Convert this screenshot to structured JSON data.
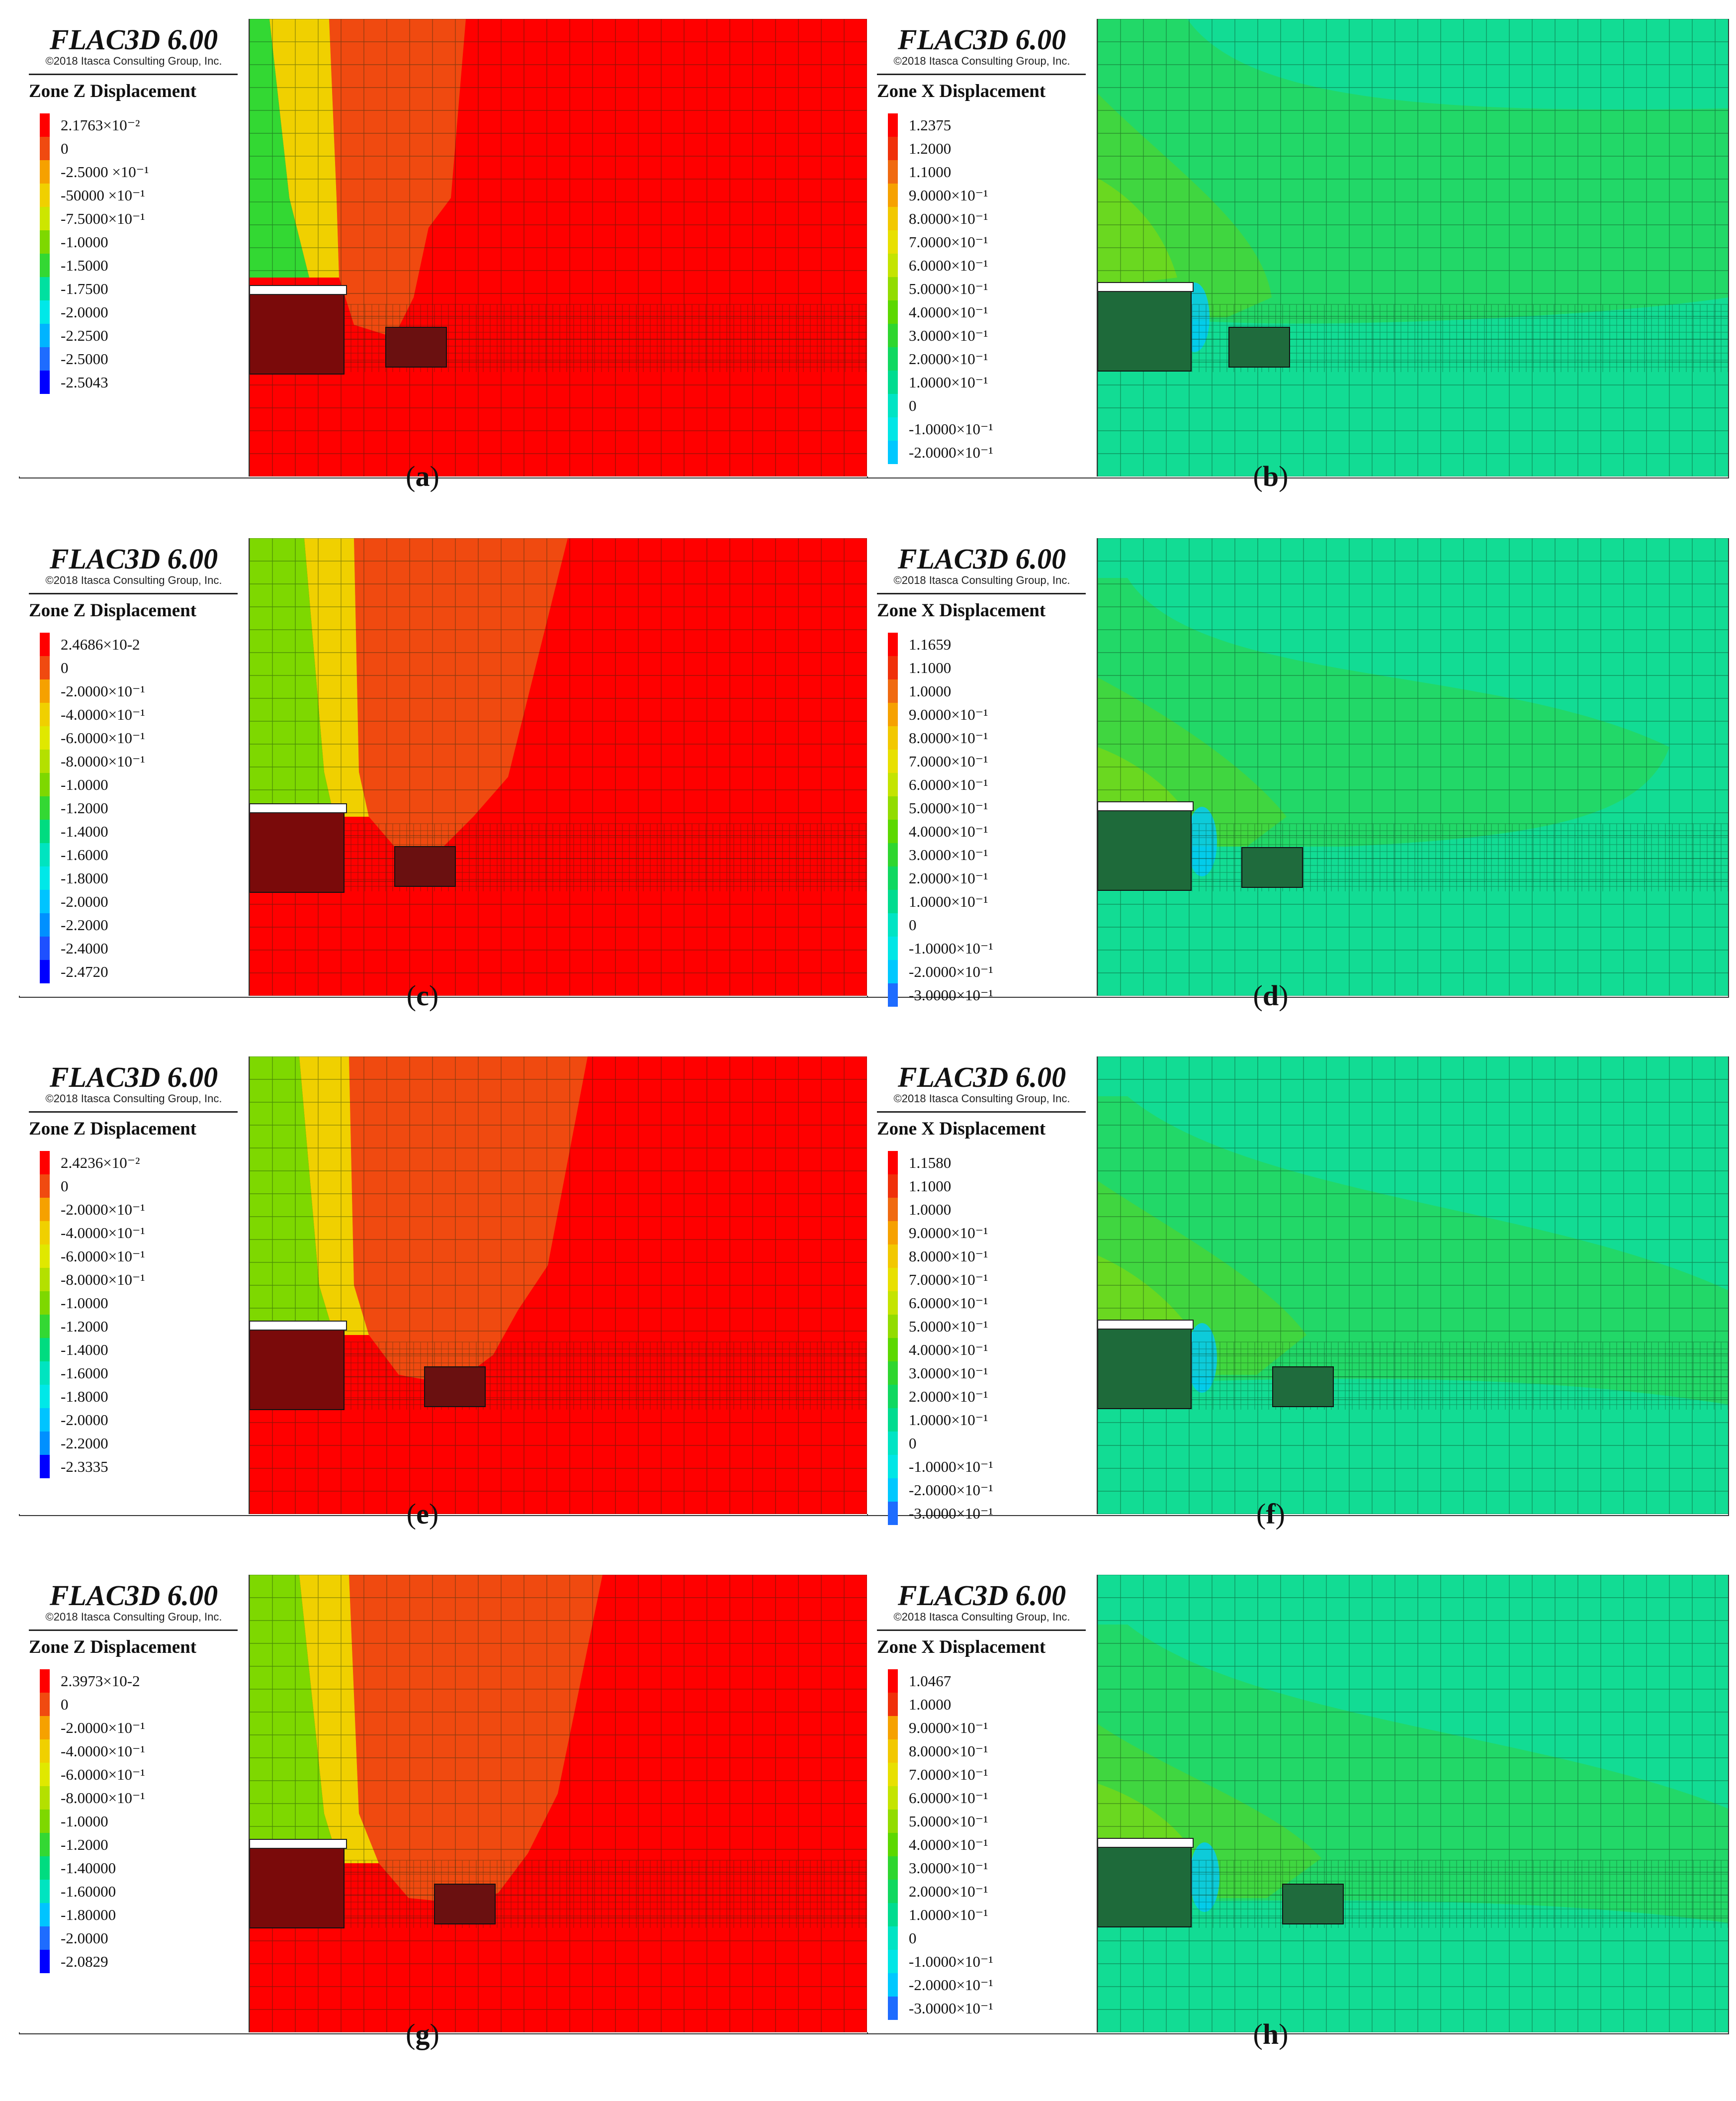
{
  "figure": {
    "panels": [
      {
        "id": "a",
        "caption": "a",
        "software": "FLAC3D 6.00",
        "copyright": "©2018 Itasca Consulting Group, Inc.",
        "quantity": "Zone Z Displacement",
        "kind": "z",
        "legend": [
          {
            "label": "2.1763×10⁻²",
            "color": "#ff0000"
          },
          {
            "label": "0",
            "color": "#f04a10"
          },
          {
            "label": "-2.5000 ×10⁻¹",
            "color": "#f6a100"
          },
          {
            "label": "-50000 ×10⁻¹",
            "color": "#f0d000"
          },
          {
            "label": "-7.5000×10⁻¹",
            "color": "#cde600"
          },
          {
            "label": "-1.0000",
            "color": "#7ed800"
          },
          {
            "label": "-1.5000",
            "color": "#33d833"
          },
          {
            "label": "-1.7500",
            "color": "#00e0a0"
          },
          {
            "label": "-2.0000",
            "color": "#00e8e8"
          },
          {
            "label": "-2.2500",
            "color": "#00b4ff"
          },
          {
            "label": "-2.5000",
            "color": "#1e6cff"
          },
          {
            "label": "-2.5043",
            "color": "#0000ff"
          }
        ]
      },
      {
        "id": "b",
        "caption": "b",
        "software": "FLAC3D 6.00",
        "copyright": "©2018 Itasca Consulting Group, Inc.",
        "quantity": "Zone X Displacement",
        "kind": "x",
        "legend": [
          {
            "label": "1.2375",
            "color": "#ff0000"
          },
          {
            "label": "1.2000",
            "color": "#f0300a"
          },
          {
            "label": "1.1000",
            "color": "#f06a10"
          },
          {
            "label": "9.0000×10⁻¹",
            "color": "#f6a100"
          },
          {
            "label": "8.0000×10⁻¹",
            "color": "#f2c800"
          },
          {
            "label": "7.0000×10⁻¹",
            "color": "#e8e000"
          },
          {
            "label": "6.0000×10⁻¹",
            "color": "#c4e400"
          },
          {
            "label": "5.0000×10⁻¹",
            "color": "#92dc00"
          },
          {
            "label": "4.0000×10⁻¹",
            "color": "#5cd800"
          },
          {
            "label": "3.0000×10⁻¹",
            "color": "#2fd62f"
          },
          {
            "label": "2.0000×10⁻¹",
            "color": "#10d860"
          },
          {
            "label": "1.0000×10⁻¹",
            "color": "#00dc90"
          },
          {
            "label": "0",
            "color": "#00e4c4"
          },
          {
            "label": "-1.0000×10⁻¹",
            "color": "#00e6e6"
          },
          {
            "label": "-2.0000×10⁻¹",
            "color": "#00c8ff"
          }
        ]
      },
      {
        "id": "c",
        "caption": "c",
        "software": "FLAC3D 6.00",
        "copyright": "©2018 Itasca Consulting Group, Inc.",
        "quantity": "Zone Z Displacement",
        "kind": "z",
        "legend": [
          {
            "label": "2.4686×10-2",
            "color": "#ff0000"
          },
          {
            "label": "0",
            "color": "#f04a10"
          },
          {
            "label": "-2.0000×10⁻¹",
            "color": "#f6a100"
          },
          {
            "label": "-4.0000×10⁻¹",
            "color": "#f0d000"
          },
          {
            "label": "-6.0000×10⁻¹",
            "color": "#e0e800"
          },
          {
            "label": "-8.0000×10⁻¹",
            "color": "#b4e000"
          },
          {
            "label": "-1.0000",
            "color": "#7ed800"
          },
          {
            "label": "-1.2000",
            "color": "#33d833"
          },
          {
            "label": "-1.4000",
            "color": "#00dc80"
          },
          {
            "label": "-1.6000",
            "color": "#00e4c0"
          },
          {
            "label": "-1.8000",
            "color": "#00e8e8"
          },
          {
            "label": "-2.0000",
            "color": "#00c4ff"
          },
          {
            "label": "-2.2000",
            "color": "#0090ff"
          },
          {
            "label": "-2.4000",
            "color": "#1e50ff"
          },
          {
            "label": "-2.4720",
            "color": "#0000ff"
          }
        ]
      },
      {
        "id": "d",
        "caption": "d",
        "software": "FLAC3D 6.00",
        "copyright": "©2018 Itasca Consulting Group, Inc.",
        "quantity": "Zone X Displacement",
        "kind": "x",
        "legend": [
          {
            "label": "1.1659",
            "color": "#ff0000"
          },
          {
            "label": "1.1000",
            "color": "#f0300a"
          },
          {
            "label": "1.0000",
            "color": "#f06a10"
          },
          {
            "label": "9.0000×10⁻¹",
            "color": "#f6a100"
          },
          {
            "label": "8.0000×10⁻¹",
            "color": "#f2c800"
          },
          {
            "label": "7.0000×10⁻¹",
            "color": "#e8e000"
          },
          {
            "label": "6.0000×10⁻¹",
            "color": "#c4e400"
          },
          {
            "label": "5.0000×10⁻¹",
            "color": "#92dc00"
          },
          {
            "label": "4.0000×10⁻¹",
            "color": "#5cd800"
          },
          {
            "label": "3.0000×10⁻¹",
            "color": "#2fd62f"
          },
          {
            "label": "2.0000×10⁻¹",
            "color": "#10d860"
          },
          {
            "label": "1.0000×10⁻¹",
            "color": "#00dc90"
          },
          {
            "label": "0",
            "color": "#00e4c4"
          },
          {
            "label": "-1.0000×10⁻¹",
            "color": "#00e6e6"
          },
          {
            "label": "-2.0000×10⁻¹",
            "color": "#00c8ff"
          },
          {
            "label": "-3.0000×10⁻¹",
            "color": "#1e6cff"
          }
        ]
      },
      {
        "id": "e",
        "caption": "e",
        "software": "FLAC3D 6.00",
        "copyright": "©2018 Itasca Consulting Group, Inc.",
        "quantity": "Zone Z Displacement",
        "kind": "z",
        "legend": [
          {
            "label": "2.4236×10⁻²",
            "color": "#ff0000"
          },
          {
            "label": "0",
            "color": "#f04a10"
          },
          {
            "label": "-2.0000×10⁻¹",
            "color": "#f6a100"
          },
          {
            "label": "-4.0000×10⁻¹",
            "color": "#f0d000"
          },
          {
            "label": "-6.0000×10⁻¹",
            "color": "#e0e800"
          },
          {
            "label": "-8.0000×10⁻¹",
            "color": "#b4e000"
          },
          {
            "label": "-1.0000",
            "color": "#7ed800"
          },
          {
            "label": "-1.2000",
            "color": "#33d833"
          },
          {
            "label": "-1.4000",
            "color": "#00dc80"
          },
          {
            "label": "-1.6000",
            "color": "#00e4c0"
          },
          {
            "label": "-1.8000",
            "color": "#00e8e8"
          },
          {
            "label": "-2.0000",
            "color": "#00c4ff"
          },
          {
            "label": "-2.2000",
            "color": "#0090ff"
          },
          {
            "label": "-2.3335",
            "color": "#0000ff"
          }
        ]
      },
      {
        "id": "f",
        "caption": "f",
        "software": "FLAC3D 6.00",
        "copyright": "©2018 Itasca Consulting Group, Inc.",
        "quantity": "Zone X Displacement",
        "kind": "x",
        "legend": [
          {
            "label": "1.1580",
            "color": "#ff0000"
          },
          {
            "label": "1.1000",
            "color": "#f0300a"
          },
          {
            "label": "1.0000",
            "color": "#f06a10"
          },
          {
            "label": "9.0000×10⁻¹",
            "color": "#f6a100"
          },
          {
            "label": "8.0000×10⁻¹",
            "color": "#f2c800"
          },
          {
            "label": "7.0000×10⁻¹",
            "color": "#e8e000"
          },
          {
            "label": "6.0000×10⁻¹",
            "color": "#c4e400"
          },
          {
            "label": "5.0000×10⁻¹",
            "color": "#92dc00"
          },
          {
            "label": "4.0000×10⁻¹",
            "color": "#5cd800"
          },
          {
            "label": "3.0000×10⁻¹",
            "color": "#2fd62f"
          },
          {
            "label": "2.0000×10⁻¹",
            "color": "#10d860"
          },
          {
            "label": "1.0000×10⁻¹",
            "color": "#00dc90"
          },
          {
            "label": "0",
            "color": "#00e4c4"
          },
          {
            "label": "-1.0000×10⁻¹",
            "color": "#00e6e6"
          },
          {
            "label": "-2.0000×10⁻¹",
            "color": "#00c8ff"
          },
          {
            "label": "-3.0000×10⁻¹",
            "color": "#1e6cff"
          }
        ]
      },
      {
        "id": "g",
        "caption": "g",
        "software": "FLAC3D 6.00",
        "copyright": "©2018 Itasca Consulting Group, Inc.",
        "quantity": "Zone Z Displacement",
        "kind": "z",
        "legend": [
          {
            "label": "2.3973×10-2",
            "color": "#ff0000"
          },
          {
            "label": "0",
            "color": "#f04a10"
          },
          {
            "label": "-2.0000×10⁻¹",
            "color": "#f6a100"
          },
          {
            "label": "-4.0000×10⁻¹",
            "color": "#f0d000"
          },
          {
            "label": "-6.0000×10⁻¹",
            "color": "#e0e800"
          },
          {
            "label": "-8.0000×10⁻¹",
            "color": "#b4e000"
          },
          {
            "label": "-1.0000",
            "color": "#7ed800"
          },
          {
            "label": "-1.2000",
            "color": "#33d833"
          },
          {
            "label": "-1.40000",
            "color": "#00dc80"
          },
          {
            "label": "-1.60000",
            "color": "#00e4c0"
          },
          {
            "label": "-1.80000",
            "color": "#00c4ff"
          },
          {
            "label": "-2.0000",
            "color": "#1e6cff"
          },
          {
            "label": "-2.0829",
            "color": "#0000ff"
          }
        ]
      },
      {
        "id": "h",
        "caption": "h",
        "software": "FLAC3D 6.00",
        "copyright": "©2018 Itasca Consulting Group, Inc.",
        "quantity": "Zone X Displacement",
        "kind": "x",
        "legend": [
          {
            "label": "1.0467",
            "color": "#ff0000"
          },
          {
            "label": "1.0000",
            "color": "#f0300a"
          },
          {
            "label": "9.0000×10⁻¹",
            "color": "#f6a100"
          },
          {
            "label": "8.0000×10⁻¹",
            "color": "#f2c800"
          },
          {
            "label": "7.0000×10⁻¹",
            "color": "#e8e000"
          },
          {
            "label": "6.0000×10⁻¹",
            "color": "#c4e400"
          },
          {
            "label": "5.0000×10⁻¹",
            "color": "#92dc00"
          },
          {
            "label": "4.0000×10⁻¹",
            "color": "#5cd800"
          },
          {
            "label": "3.0000×10⁻¹",
            "color": "#2fd62f"
          },
          {
            "label": "2.0000×10⁻¹",
            "color": "#10d860"
          },
          {
            "label": "1.0000×10⁻¹",
            "color": "#00dc90"
          },
          {
            "label": "0",
            "color": "#00e4c4"
          },
          {
            "label": "-1.0000×10⁻¹",
            "color": "#00e6e6"
          },
          {
            "label": "-2.0000×10⁻¹",
            "color": "#00c8ff"
          },
          {
            "label": "-3.0000×10⁻¹",
            "color": "#1e6cff"
          }
        ]
      }
    ]
  }
}
